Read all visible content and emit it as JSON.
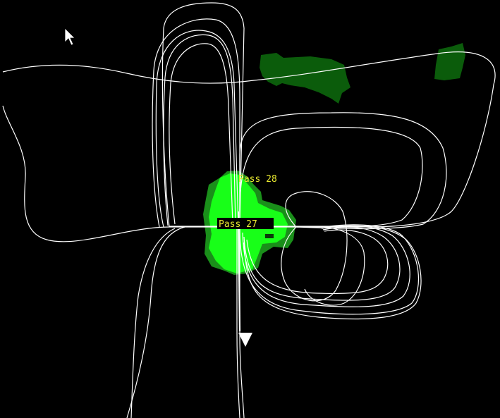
{
  "viewport": {
    "background": "#000000",
    "track_color": "#ffffff",
    "coverage_dark": "#0b5c0b",
    "coverage_mid": "#1fb51f",
    "coverage_bright": "#18ff18",
    "label_color": "#e8e830",
    "label_box": "#000000"
  },
  "labels": {
    "pass_top": "Pass 28",
    "pass_bottom": "Pass 27"
  },
  "icons": {
    "cursor": "mouse-pointer-icon",
    "direction": "heading-arrow-icon"
  }
}
